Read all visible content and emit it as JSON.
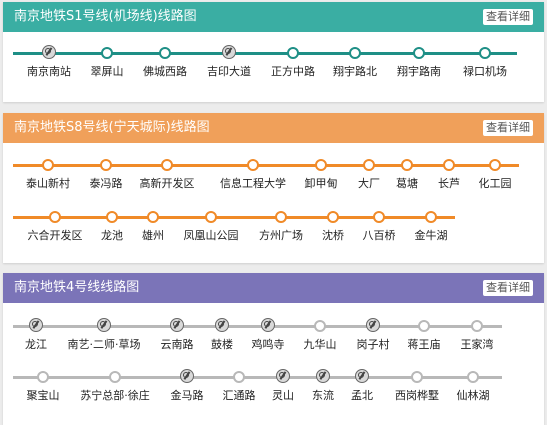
{
  "details_label": "查看详细",
  "lines": [
    {
      "title": "南京地铁S1号线(机场线)线路图",
      "color": "#3aaea3",
      "track_color": "#1e8f86",
      "rows": [
        {
          "stations": [
            {
              "name": "南京南站",
              "transfer": true
            },
            {
              "name": "翠屏山",
              "transfer": false
            },
            {
              "name": "佛城西路",
              "transfer": false
            },
            {
              "name": "吉印大道",
              "transfer": true
            },
            {
              "name": "正方中路",
              "transfer": false
            },
            {
              "name": "翔宇路北",
              "transfer": false
            },
            {
              "name": "翔宇路南",
              "transfer": false
            },
            {
              "name": "禄口机场",
              "transfer": false
            }
          ]
        }
      ]
    },
    {
      "title": "南京地铁S8号线(宁天城际)线路图",
      "color": "#f0a05a",
      "track_color": "#f08a28",
      "rows": [
        {
          "stations": [
            {
              "name": "泰山新村",
              "transfer": false
            },
            {
              "name": "泰冯路",
              "transfer": false
            },
            {
              "name": "高新开发区",
              "transfer": false
            },
            {
              "name": "信息工程大学",
              "transfer": false
            },
            {
              "name": "卸甲甸",
              "transfer": false
            },
            {
              "name": "大厂",
              "transfer": false
            },
            {
              "name": "葛塘",
              "transfer": false
            },
            {
              "name": "长芦",
              "transfer": false
            },
            {
              "name": "化工园",
              "transfer": false
            }
          ]
        },
        {
          "stations": [
            {
              "name": "六合开发区",
              "transfer": false
            },
            {
              "name": "龙池",
              "transfer": false
            },
            {
              "name": "雄州",
              "transfer": false
            },
            {
              "name": "凤凰山公园",
              "transfer": false
            },
            {
              "name": "方州广场",
              "transfer": false
            },
            {
              "name": "沈桥",
              "transfer": false
            },
            {
              "name": "八百桥",
              "transfer": false
            },
            {
              "name": "金牛湖",
              "transfer": false
            }
          ]
        }
      ]
    },
    {
      "title": "南京地铁4号线线路图",
      "color": "#7b74b8",
      "track_color": "#b8b8b8",
      "rows": [
        {
          "stations": [
            {
              "name": "龙江",
              "transfer": true
            },
            {
              "name": "南艺·二师·草场",
              "transfer": true
            },
            {
              "name": "云南路",
              "transfer": true
            },
            {
              "name": "鼓楼",
              "transfer": true
            },
            {
              "name": "鸡鸣寺",
              "transfer": true
            },
            {
              "name": "九华山",
              "transfer": false
            },
            {
              "name": "岗子村",
              "transfer": true
            },
            {
              "name": "蒋王庙",
              "transfer": false
            },
            {
              "name": "王家湾",
              "transfer": false
            }
          ]
        },
        {
          "stations": [
            {
              "name": "聚宝山",
              "transfer": false
            },
            {
              "name": "苏宁总部·徐庄",
              "transfer": false
            },
            {
              "name": "金马路",
              "transfer": true
            },
            {
              "name": "汇通路",
              "transfer": false
            },
            {
              "name": "灵山",
              "transfer": true
            },
            {
              "name": "东流",
              "transfer": true
            },
            {
              "name": "孟北",
              "transfer": true
            },
            {
              "name": "西岗桦墅",
              "transfer": false
            },
            {
              "name": "仙林湖",
              "transfer": false
            }
          ]
        }
      ]
    }
  ]
}
